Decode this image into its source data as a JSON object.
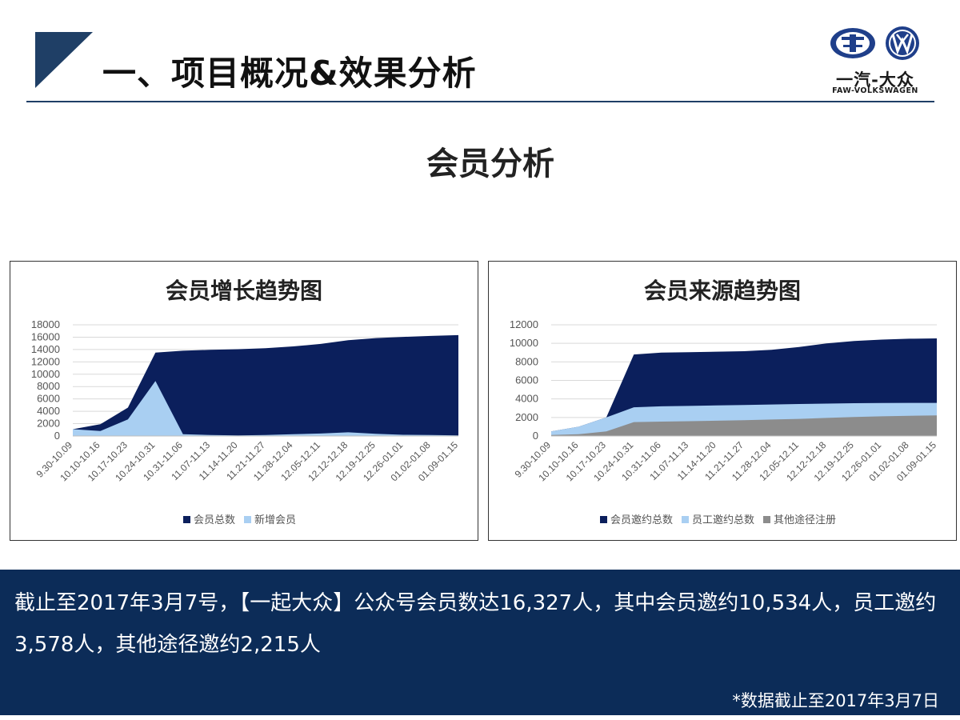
{
  "header": {
    "title": "一、项目概况&效果分析",
    "logo_text": "一汽-大众",
    "logo_sub": "FAW-VOLKSWAGEN"
  },
  "section_title": "会员分析",
  "chart_data": [
    {
      "type": "area",
      "title": "会员增长趋势图",
      "categories": [
        "9.30-10.09",
        "10.10-10.16",
        "10.17-10.23",
        "10.24-10.31",
        "10.31-11.06",
        "11.07-11.13",
        "11.14-11.20",
        "11.21-11.27",
        "11.28-12.04",
        "12.05-12.11",
        "12.12-12.18",
        "12.19-12.25",
        "12.26-01.01",
        "01.02-01.08",
        "01.09-01.15"
      ],
      "ylim": [
        0,
        18000
      ],
      "yticks": [
        0,
        2000,
        4000,
        6000,
        8000,
        10000,
        12000,
        14000,
        16000,
        18000
      ],
      "grid": true,
      "legend": "bottom",
      "series": [
        {
          "name": "会员总数",
          "color": "#0b1f5c",
          "values": [
            1100,
            1900,
            4600,
            13500,
            13800,
            13950,
            14050,
            14200,
            14500,
            14900,
            15500,
            15850,
            16050,
            16200,
            16327
          ]
        },
        {
          "name": "新增会员",
          "color": "#a9cff2",
          "values": [
            1100,
            800,
            2700,
            8900,
            300,
            150,
            100,
            150,
            300,
            400,
            600,
            350,
            200,
            150,
            100
          ]
        }
      ]
    },
    {
      "type": "area",
      "title": "会员来源趋势图",
      "categories": [
        "9.30-10.09",
        "10.10-10.16",
        "10.17-10.23",
        "10.24-10.31",
        "10.31-11.06",
        "11.07-11.13",
        "11.14-11.20",
        "11.21-11.27",
        "11.28-12.04",
        "12.05-12.11",
        "12.12-12.18",
        "12.19-12.25",
        "12.26-01.01",
        "01.02-01.08",
        "01.09-01.15"
      ],
      "ylim": [
        0,
        12000
      ],
      "yticks": [
        0,
        2000,
        4000,
        6000,
        8000,
        10000,
        12000
      ],
      "grid": true,
      "legend": "bottom",
      "series": [
        {
          "name": "会员邀约总数",
          "color": "#0b1f5c",
          "values": [
            500,
            1000,
            2000,
            8800,
            9000,
            9050,
            9100,
            9150,
            9300,
            9600,
            10000,
            10250,
            10400,
            10500,
            10534
          ]
        },
        {
          "name": "员工邀约总数",
          "color": "#a9cff2",
          "values": [
            500,
            1000,
            2000,
            3100,
            3200,
            3250,
            3300,
            3350,
            3400,
            3450,
            3500,
            3540,
            3560,
            3570,
            3578
          ]
        },
        {
          "name": "其他途径注册",
          "color": "#8c8c8c",
          "values": [
            100,
            200,
            500,
            1500,
            1550,
            1600,
            1650,
            1700,
            1780,
            1850,
            1950,
            2050,
            2120,
            2180,
            2215
          ]
        }
      ]
    }
  ],
  "summary": {
    "text": "截止至2017年3月7号，【一起大众】公众号会员数达16,327人，其中会员邀约10,534人，员工邀约3,578人，其他途径邀约2,215人",
    "footnote": "*数据截止至2017年3月7日"
  },
  "colors": {
    "accent": "#0c2c58",
    "dark_series": "#0b1f5c",
    "light_series": "#a9cff2",
    "gray_series": "#8c8c8c"
  }
}
